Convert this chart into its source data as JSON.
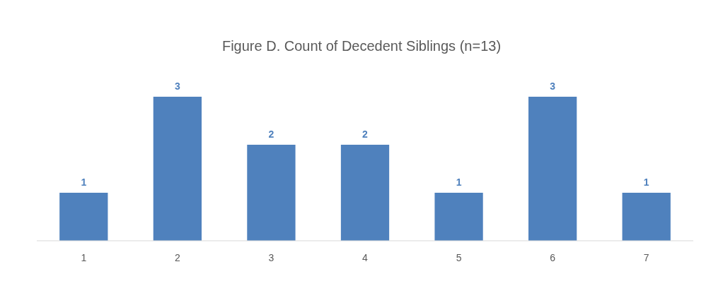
{
  "chart_data": {
    "type": "bar",
    "title": "Figure D. Count of Decedent Siblings (n=13)",
    "categories": [
      "1",
      "2",
      "3",
      "4",
      "5",
      "6",
      "7"
    ],
    "values": [
      1,
      3,
      2,
      2,
      1,
      3,
      1
    ],
    "color": "#4f81bd",
    "data_labels": true
  }
}
